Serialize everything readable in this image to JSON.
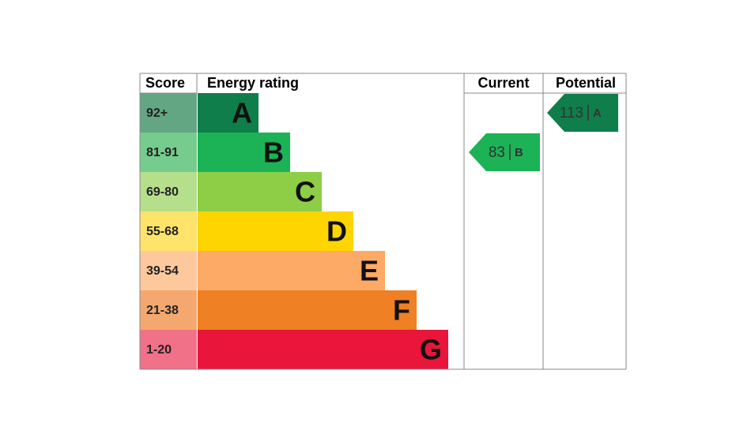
{
  "header": {
    "score": "Score",
    "energy_rating": "Energy rating",
    "current": "Current",
    "potential": "Potential"
  },
  "bands": [
    {
      "score": "92+",
      "rating": "A",
      "color": "#0f7e4b",
      "score_color": "#63a683"
    },
    {
      "score": "81-91",
      "rating": "B",
      "color": "#1cb356",
      "score_color": "#75cc8d"
    },
    {
      "score": "69-80",
      "rating": "C",
      "color": "#8dce46",
      "score_color": "#b6df8b"
    },
    {
      "score": "55-68",
      "rating": "D",
      "color": "#ffd500",
      "score_color": "#ffe36b"
    },
    {
      "score": "39-54",
      "rating": "E",
      "color": "#fcaa65",
      "score_color": "#fdc99c"
    },
    {
      "score": "21-38",
      "rating": "F",
      "color": "#ef8023",
      "score_color": "#f4a870"
    },
    {
      "score": "1-20",
      "rating": "G",
      "color": "#e9153b",
      "score_color": "#f07188"
    }
  ],
  "current": {
    "score": 83,
    "rating": "B"
  },
  "potential": {
    "score": 113,
    "rating": "A"
  }
}
